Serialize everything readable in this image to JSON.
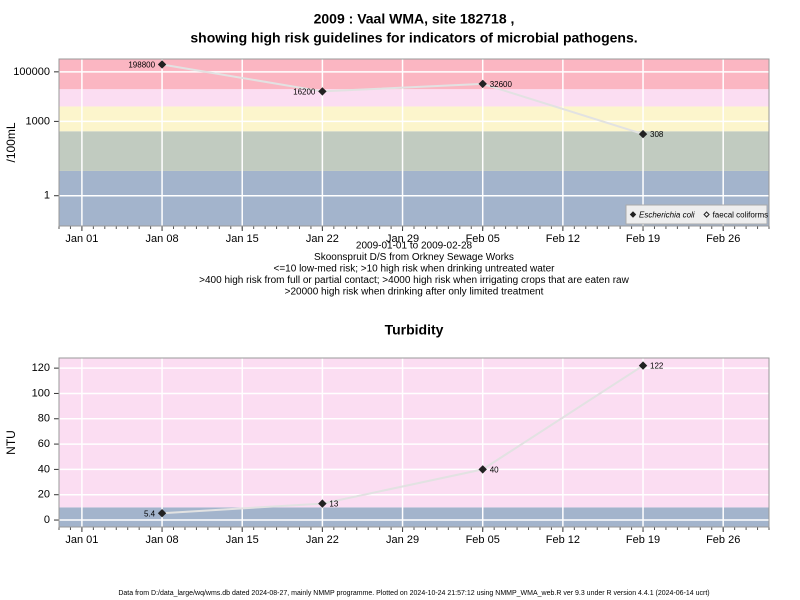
{
  "chart_data": [
    {
      "type": "line",
      "title": [
        "2009 : Vaal WMA, site 182718 ,",
        "showing high risk guidelines for indicators of microbial pathogens."
      ],
      "ylabel": "/100mL",
      "log_y": true,
      "x": [
        "2009-01-08",
        "2009-01-22",
        "2009-02-05",
        "2009-02-19"
      ],
      "series": [
        {
          "name": "Escherichia coli",
          "color": "#222222",
          "italic": true,
          "marker": "filled",
          "values": [
            198800,
            16200,
            32600,
            308
          ]
        },
        {
          "name": "faecal coliforms",
          "color": "#222222",
          "marker": "open",
          "values": [
            null,
            null,
            null,
            null
          ]
        }
      ],
      "line_color": "#e2e2e2",
      "xlim": [
        "2008-12-30",
        "2009-03-02"
      ],
      "xticks": [
        {
          "value": "2009-01-01",
          "label": "Jan 01"
        },
        {
          "value": "2009-01-08",
          "label": "Jan 08"
        },
        {
          "value": "2009-01-15",
          "label": "Jan 15"
        },
        {
          "value": "2009-01-22",
          "label": "Jan 22"
        },
        {
          "value": "2009-01-29",
          "label": "Jan 29"
        },
        {
          "value": "2009-02-05",
          "label": "Feb 05"
        },
        {
          "value": "2009-02-12",
          "label": "Feb 12"
        },
        {
          "value": "2009-02-19",
          "label": "Feb 19"
        },
        {
          "value": "2009-02-26",
          "label": "Feb 26"
        }
      ],
      "ylim": [
        0.06,
        330000
      ],
      "yticks": [
        1,
        1000,
        100000
      ],
      "band_limits": [
        10,
        400,
        4000,
        20000
      ],
      "band_colors": [
        "#a3b4cc",
        "#c1cbc0",
        "#fcf5cc",
        "#fbddf2",
        "#fbb6c2"
      ],
      "grid": true,
      "legend": "bottom-right",
      "notes": [
        "2009-01-01 to 2009-02-28",
        "Skoonspruit D/S from Orkney Sewage Works",
        "<=10 low-med risk; >10 high risk when drinking untreated water",
        ">400 high risk from full or partial contact; >4000 high risk when irrigating crops that are eaten raw",
        ">20000 high risk when drinking after only limited treatment"
      ]
    },
    {
      "type": "line",
      "title": [
        "Turbidity"
      ],
      "ylabel": "NTU",
      "log_y": false,
      "x": [
        "2009-01-08",
        "2009-01-22",
        "2009-02-05",
        "2009-02-19"
      ],
      "values": [
        5.4,
        13,
        40,
        122
      ],
      "color": "#222222",
      "line_color": "#e2e2e2",
      "xlim": [
        "2008-12-30",
        "2009-03-02"
      ],
      "xticks": [
        {
          "value": "2009-01-01",
          "label": "Jan 01"
        },
        {
          "value": "2009-01-08",
          "label": "Jan 08"
        },
        {
          "value": "2009-01-15",
          "label": "Jan 15"
        },
        {
          "value": "2009-01-22",
          "label": "Jan 22"
        },
        {
          "value": "2009-01-29",
          "label": "Jan 29"
        },
        {
          "value": "2009-02-05",
          "label": "Feb 05"
        },
        {
          "value": "2009-02-12",
          "label": "Feb 12"
        },
        {
          "value": "2009-02-19",
          "label": "Feb 19"
        },
        {
          "value": "2009-02-26",
          "label": "Feb 26"
        }
      ],
      "ylim": [
        -5.5,
        128
      ],
      "yticks": [
        0,
        20,
        40,
        60,
        80,
        100,
        120
      ],
      "band_limits": [
        10
      ],
      "band_colors": [
        "#a3b4cc",
        "#fbddf2"
      ],
      "grid": true
    }
  ],
  "footer": "Data from D:/data_large/wq/wms.db dated 2024-08-27, mainly NMMP programme. Plotted on 2024-10-24 21:57:12 using NMMP_WMA_web.R ver 9.3 under R version 4.4.1 (2024-06-14 ucrt)"
}
